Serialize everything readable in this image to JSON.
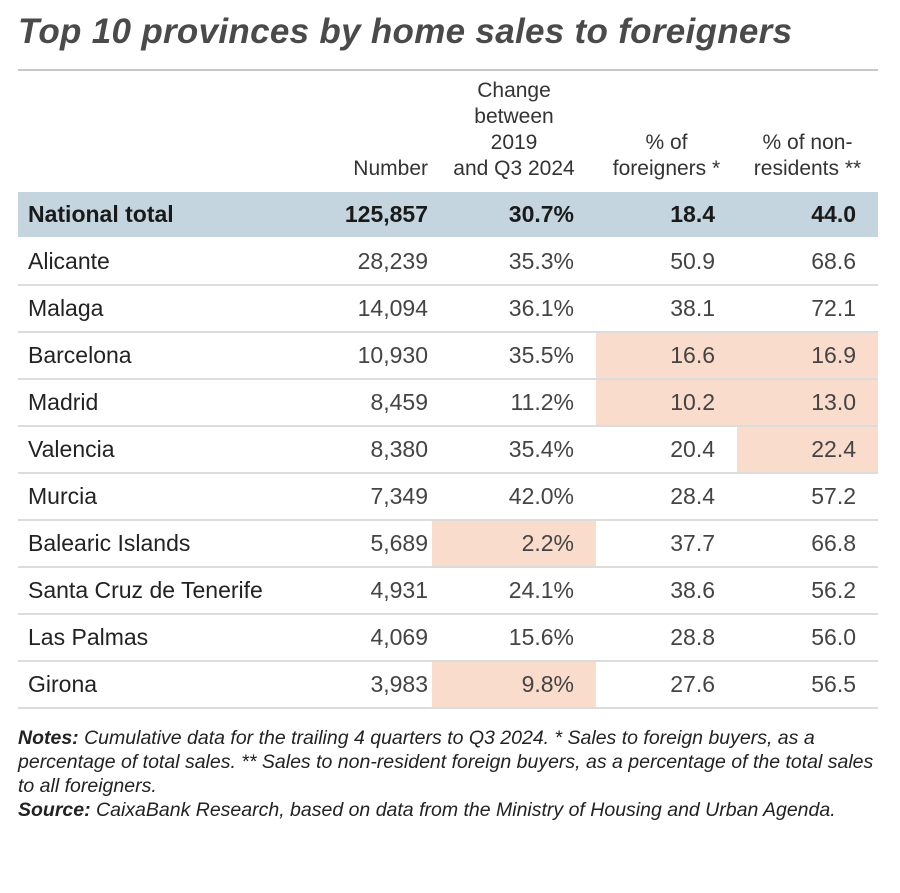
{
  "title": "Top 10 provinces by home sales to foreigners",
  "chart_data": {
    "type": "table",
    "title": "Top 10 provinces by home sales to foreigners",
    "columns": [
      "",
      "Number",
      "Change between 2019 and Q3 2024",
      "% of foreigners *",
      "% of non-residents **"
    ],
    "header_lines": {
      "number": [
        "Number"
      ],
      "change": [
        "Change",
        "between",
        "2019",
        "and Q3 2024"
      ],
      "foreigners": [
        "% of",
        "foreigners *"
      ],
      "nonres": [
        "% of non-",
        "residents **"
      ]
    },
    "total": {
      "name": "National total",
      "number": "125,857",
      "change": "30.7%",
      "foreigners": "18.4",
      "nonres": "44.0"
    },
    "rows": [
      {
        "name": "Alicante",
        "number": "28,239",
        "change": "35.3%",
        "foreigners": "50.9",
        "nonres": "68.6",
        "highlight": []
      },
      {
        "name": "Malaga",
        "number": "14,094",
        "change": "36.1%",
        "foreigners": "38.1",
        "nonres": "72.1",
        "highlight": []
      },
      {
        "name": "Barcelona",
        "number": "10,930",
        "change": "35.5%",
        "foreigners": "16.6",
        "nonres": "16.9",
        "highlight": [
          "foreigners",
          "nonres"
        ]
      },
      {
        "name": "Madrid",
        "number": "8,459",
        "change": "11.2%",
        "foreigners": "10.2",
        "nonres": "13.0",
        "highlight": [
          "foreigners",
          "nonres"
        ]
      },
      {
        "name": "Valencia",
        "number": "8,380",
        "change": "35.4%",
        "foreigners": "20.4",
        "nonres": "22.4",
        "highlight": [
          "nonres"
        ]
      },
      {
        "name": "Murcia",
        "number": "7,349",
        "change": "42.0%",
        "foreigners": "28.4",
        "nonres": "57.2",
        "highlight": []
      },
      {
        "name": "Balearic Islands",
        "number": "5,689",
        "change": "2.2%",
        "foreigners": "37.7",
        "nonres": "66.8",
        "highlight": [
          "change"
        ]
      },
      {
        "name": "Santa Cruz de Tenerife",
        "number": "4,931",
        "change": "24.1%",
        "foreigners": "38.6",
        "nonres": "56.2",
        "highlight": []
      },
      {
        "name": "Las Palmas",
        "number": "4,069",
        "change": "15.6%",
        "foreigners": "28.8",
        "nonres": "56.0",
        "highlight": []
      },
      {
        "name": "Girona",
        "number": "3,983",
        "change": "9.8%",
        "foreigners": "27.6",
        "nonres": "56.5",
        "highlight": [
          "change"
        ]
      }
    ],
    "colors": {
      "total_row": "#c5d5df",
      "highlight": "#f9dccb"
    }
  },
  "notes": {
    "notes_label": "Notes:",
    "notes_text": " Cumulative data for the trailing 4 quarters to Q3 2024. * Sales to foreign buyers, as a percentage of total sales. ** Sales to non-resident foreign buyers, as a percentage of the total sales to all foreigners.",
    "source_label": "Source:",
    "source_text": " CaixaBank Research, based on data from the Ministry of Housing and Urban Agenda."
  }
}
